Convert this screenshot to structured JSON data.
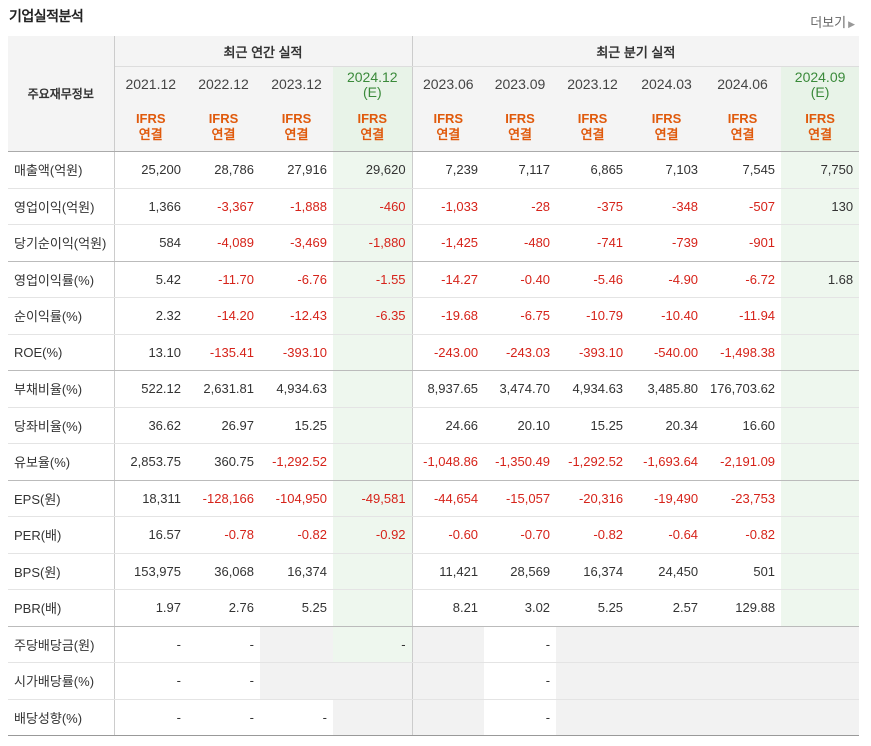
{
  "section_title": "기업실적분석",
  "more_label": "더보기",
  "header": {
    "row_label": "주요재무정보",
    "annual_group": "최근 연간 실적",
    "quarter_group": "최근 분기 실적",
    "periods": [
      {
        "year": "2021.12",
        "est": "",
        "ifrs1": "IFRS",
        "ifrs2": "연결"
      },
      {
        "year": "2022.12",
        "est": "",
        "ifrs1": "IFRS",
        "ifrs2": "연결"
      },
      {
        "year": "2023.12",
        "est": "",
        "ifrs1": "IFRS",
        "ifrs2": "연결"
      },
      {
        "year": "2024.12",
        "est": "(E)",
        "ifrs1": "IFRS",
        "ifrs2": "연결"
      },
      {
        "year": "2023.06",
        "est": "",
        "ifrs1": "IFRS",
        "ifrs2": "연결"
      },
      {
        "year": "2023.09",
        "est": "",
        "ifrs1": "IFRS",
        "ifrs2": "연결"
      },
      {
        "year": "2023.12",
        "est": "",
        "ifrs1": "IFRS",
        "ifrs2": "연결"
      },
      {
        "year": "2024.03",
        "est": "",
        "ifrs1": "IFRS",
        "ifrs2": "연결"
      },
      {
        "year": "2024.06",
        "est": "",
        "ifrs1": "IFRS",
        "ifrs2": "연결"
      },
      {
        "year": "2024.09",
        "est": "(E)",
        "ifrs1": "IFRS",
        "ifrs2": "연결"
      }
    ]
  },
  "rows": [
    {
      "label": "매출액(억원)",
      "values": [
        "25,200",
        "28,786",
        "27,916",
        "29,620",
        "7,239",
        "7,117",
        "6,865",
        "7,103",
        "7,545",
        "7,750"
      ]
    },
    {
      "label": "영업이익(억원)",
      "values": [
        "1,366",
        "-3,367",
        "-1,888",
        "-460",
        "-1,033",
        "-28",
        "-375",
        "-348",
        "-507",
        "130"
      ]
    },
    {
      "label": "당기순이익(억원)",
      "values": [
        "584",
        "-4,089",
        "-3,469",
        "-1,880",
        "-1,425",
        "-480",
        "-741",
        "-739",
        "-901",
        ""
      ]
    },
    {
      "label": "영업이익률(%)",
      "values": [
        "5.42",
        "-11.70",
        "-6.76",
        "-1.55",
        "-14.27",
        "-0.40",
        "-5.46",
        "-4.90",
        "-6.72",
        "1.68"
      ]
    },
    {
      "label": "순이익률(%)",
      "values": [
        "2.32",
        "-14.20",
        "-12.43",
        "-6.35",
        "-19.68",
        "-6.75",
        "-10.79",
        "-10.40",
        "-11.94",
        ""
      ]
    },
    {
      "label": "ROE(%)",
      "values": [
        "13.10",
        "-135.41",
        "-393.10",
        "",
        "-243.00",
        "-243.03",
        "-393.10",
        "-540.00",
        "-1,498.38",
        ""
      ]
    },
    {
      "label": "부채비율(%)",
      "values": [
        "522.12",
        "2,631.81",
        "4,934.63",
        "",
        "8,937.65",
        "3,474.70",
        "4,934.63",
        "3,485.80",
        "176,703.62",
        ""
      ]
    },
    {
      "label": "당좌비율(%)",
      "values": [
        "36.62",
        "26.97",
        "15.25",
        "",
        "24.66",
        "20.10",
        "15.25",
        "20.34",
        "16.60",
        ""
      ]
    },
    {
      "label": "유보율(%)",
      "values": [
        "2,853.75",
        "360.75",
        "-1,292.52",
        "",
        "-1,048.86",
        "-1,350.49",
        "-1,292.52",
        "-1,693.64",
        "-2,191.09",
        ""
      ]
    },
    {
      "label": "EPS(원)",
      "values": [
        "18,311",
        "-128,166",
        "-104,950",
        "-49,581",
        "-44,654",
        "-15,057",
        "-20,316",
        "-19,490",
        "-23,753",
        ""
      ]
    },
    {
      "label": "PER(배)",
      "values": [
        "16.57",
        "-0.78",
        "-0.82",
        "-0.92",
        "-0.60",
        "-0.70",
        "-0.82",
        "-0.64",
        "-0.82",
        ""
      ]
    },
    {
      "label": "BPS(원)",
      "values": [
        "153,975",
        "36,068",
        "16,374",
        "",
        "11,421",
        "28,569",
        "16,374",
        "24,450",
        "501",
        ""
      ]
    },
    {
      "label": "PBR(배)",
      "values": [
        "1.97",
        "2.76",
        "5.25",
        "",
        "8.21",
        "3.02",
        "5.25",
        "2.57",
        "129.88",
        ""
      ]
    },
    {
      "label": "주당배당금(원)",
      "values": [
        "-",
        "-",
        "",
        "-",
        "",
        "-",
        "",
        "",
        "",
        ""
      ]
    },
    {
      "label": "시가배당률(%)",
      "values": [
        "-",
        "-",
        "",
        "",
        "",
        "-",
        "",
        "",
        "",
        ""
      ]
    },
    {
      "label": "배당성향(%)",
      "values": [
        "-",
        "-",
        "-",
        "",
        "",
        "-",
        "",
        "",
        "",
        ""
      ]
    }
  ]
}
